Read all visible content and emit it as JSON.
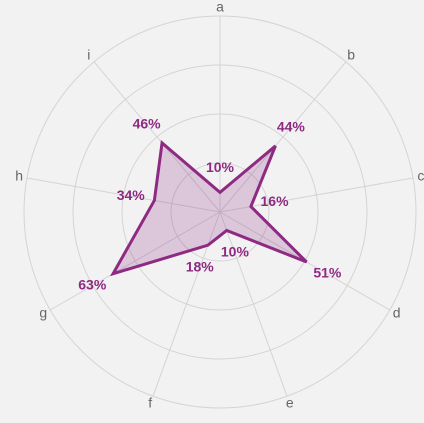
{
  "chart_data": {
    "type": "radar",
    "categories": [
      "a",
      "b",
      "c",
      "d",
      "e",
      "f",
      "g",
      "h",
      "i"
    ],
    "values": [
      10,
      44,
      16,
      51,
      10,
      18,
      63,
      34,
      46
    ],
    "value_labels": [
      "10%",
      "44%",
      "16%",
      "51%",
      "10%",
      "18%",
      "63%",
      "34%",
      "46%"
    ],
    "color": "#8e2a82",
    "rlim": [
      0,
      100
    ],
    "rticks": [
      25,
      50,
      75,
      100
    ],
    "grid": true
  }
}
